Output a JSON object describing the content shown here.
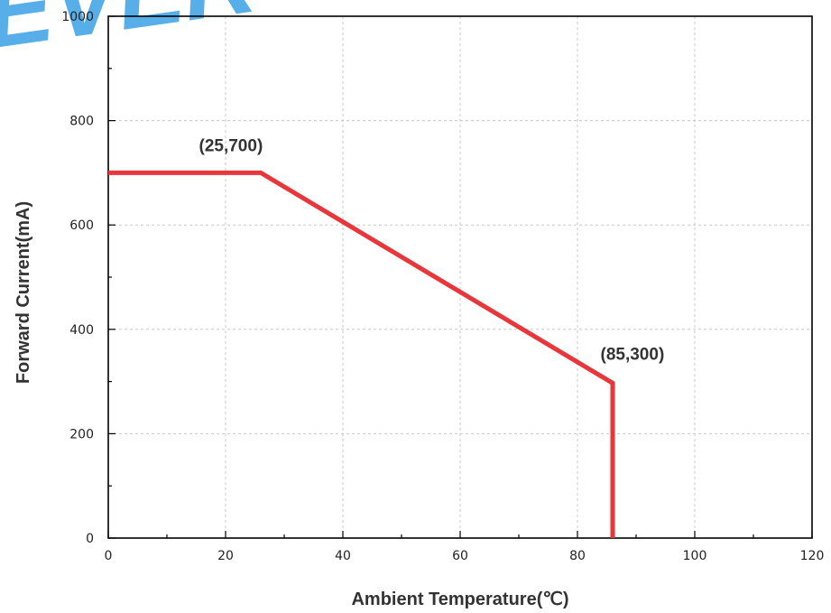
{
  "watermark": {
    "text": "EVER",
    "color": "#3aa0e6"
  },
  "chart_data": {
    "type": "line",
    "xlabel": "Ambient Temperature(℃)",
    "ylabel": "Forward Current(mA)",
    "xlim": [
      0,
      120
    ],
    "ylim": [
      0,
      1000
    ],
    "x_ticks": [
      0,
      20,
      40,
      60,
      80,
      100,
      120
    ],
    "y_ticks": [
      0,
      200,
      400,
      600,
      800,
      1000
    ],
    "x_tick_labels": [
      "0",
      "20",
      "40",
      "60",
      "80",
      "100",
      "120"
    ],
    "y_tick_labels": [
      "0",
      "200",
      "400",
      "600",
      "800",
      "1000"
    ],
    "grid": true,
    "series": [
      {
        "color": "#e8363a",
        "points": [
          [
            0,
            700
          ],
          [
            26,
            700
          ],
          [
            86,
            297
          ],
          [
            86,
            0
          ]
        ]
      }
    ],
    "annotations": [
      {
        "text": "(25,700)",
        "x": 25,
        "y": 700
      },
      {
        "text": "(85,300)",
        "x": 85,
        "y": 300
      }
    ]
  }
}
